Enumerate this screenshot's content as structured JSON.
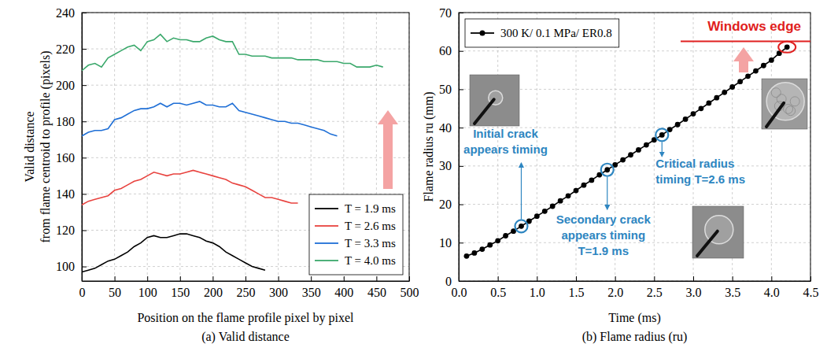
{
  "chart_data": [
    {
      "type": "line",
      "title": "(a) Valid distance",
      "xlabel": "Position on the flame profile pixel by pixel",
      "ylabel": "Valid distance\nfrom flame centroid to profile (pixels)",
      "xlim": [
        0,
        500
      ],
      "xticks": [
        0,
        50,
        100,
        150,
        200,
        250,
        300,
        350,
        400,
        450,
        500
      ],
      "ylim": [
        92,
        240
      ],
      "yticks": [
        100,
        120,
        140,
        160,
        180,
        200,
        220,
        240
      ],
      "grid": true,
      "legend": "lower right",
      "series": [
        {
          "name": "T = 1.9 ms",
          "color": "#000000",
          "line_style": "solid",
          "x": [
            0,
            10,
            20,
            30,
            40,
            50,
            60,
            70,
            80,
            90,
            100,
            110,
            120,
            130,
            140,
            150,
            160,
            170,
            180,
            190,
            200,
            210,
            220,
            230,
            240,
            250,
            260,
            270,
            280
          ],
          "values": [
            97,
            98,
            99,
            101,
            103,
            104,
            106,
            108,
            111,
            113,
            116,
            117,
            116,
            116,
            117,
            118,
            118,
            117,
            116,
            114,
            113,
            111,
            108,
            106,
            104,
            102,
            100,
            99,
            98
          ]
        },
        {
          "name": "T = 2.6 ms",
          "color": "#e8433f",
          "line_style": "solid",
          "x": [
            0,
            10,
            20,
            30,
            40,
            50,
            60,
            70,
            80,
            90,
            100,
            110,
            120,
            130,
            140,
            150,
            160,
            170,
            180,
            190,
            200,
            210,
            220,
            230,
            240,
            250,
            260,
            270,
            280,
            290,
            300,
            310,
            320,
            330
          ],
          "values": [
            134,
            136,
            137,
            138,
            139,
            142,
            143,
            145,
            147,
            148,
            150,
            152,
            151,
            150,
            151,
            151,
            152,
            153,
            152,
            151,
            150,
            149,
            148,
            146,
            145,
            144,
            142,
            140,
            138,
            138,
            137,
            136,
            135,
            135
          ]
        },
        {
          "name": "T = 3.3 ms",
          "color": "#1f6fd6",
          "line_style": "solid",
          "x": [
            0,
            10,
            20,
            30,
            40,
            50,
            60,
            70,
            80,
            90,
            100,
            110,
            120,
            130,
            140,
            150,
            160,
            170,
            180,
            190,
            200,
            210,
            220,
            230,
            240,
            250,
            260,
            270,
            280,
            290,
            300,
            310,
            320,
            330,
            340,
            350,
            360,
            370,
            380,
            390
          ],
          "values": [
            172,
            174,
            175,
            175,
            176,
            181,
            182,
            184,
            186,
            187,
            187,
            188,
            190,
            188,
            190,
            190,
            189,
            190,
            191,
            189,
            189,
            188,
            188,
            190,
            186,
            185,
            184,
            183,
            182,
            181,
            180,
            180,
            179,
            179,
            178,
            177,
            176,
            175,
            173,
            172
          ]
        },
        {
          "name": "T = 4.0 ms",
          "color": "#3aa86b",
          "line_style": "solid",
          "x": [
            0,
            10,
            20,
            30,
            40,
            50,
            60,
            70,
            80,
            90,
            100,
            110,
            120,
            130,
            140,
            150,
            160,
            170,
            180,
            190,
            200,
            210,
            220,
            230,
            240,
            250,
            260,
            270,
            280,
            290,
            300,
            310,
            320,
            330,
            340,
            350,
            360,
            370,
            380,
            390,
            400,
            410,
            420,
            430,
            440,
            450,
            460
          ],
          "values": [
            208,
            211,
            212,
            210,
            215,
            217,
            219,
            221,
            222,
            219,
            224,
            225,
            228,
            224,
            226,
            225,
            225,
            224,
            224,
            226,
            227,
            225,
            224,
            224,
            217,
            217,
            216,
            216,
            216,
            215,
            215,
            215,
            215,
            214,
            214,
            214,
            214,
            213,
            213,
            213,
            212,
            212,
            210,
            210,
            210,
            211,
            210
          ]
        }
      ]
    },
    {
      "type": "line",
      "title": "(b) Flame radius (ru)",
      "xlabel": "Time (ms)",
      "ylabel": "Flame radius ru (mm)",
      "xlim": [
        0,
        4.5
      ],
      "xticks": [
        {
          "value": 0,
          "label": "0.0"
        },
        0.5,
        {
          "value": 1,
          "label": "1.0"
        },
        1.5,
        {
          "value": 2,
          "label": "2.0"
        },
        2.5,
        {
          "value": 3,
          "label": "3.0"
        },
        3.5,
        {
          "value": 4,
          "label": "4.0"
        },
        4.5
      ],
      "ylim": [
        0,
        70
      ],
      "yticks": [
        0,
        10,
        20,
        30,
        40,
        50,
        60,
        70
      ],
      "grid": true,
      "legend": "upper left",
      "x": [
        0.1,
        0.2,
        0.3,
        0.4,
        0.5,
        0.6,
        0.7,
        0.8,
        0.9,
        1.0,
        1.1,
        1.2,
        1.3,
        1.4,
        1.5,
        1.6,
        1.7,
        1.8,
        1.9,
        2.0,
        2.1,
        2.2,
        2.3,
        2.4,
        2.5,
        2.6,
        2.7,
        2.8,
        2.9,
        3.0,
        3.1,
        3.2,
        3.3,
        3.4,
        3.5,
        3.6,
        3.7,
        3.8,
        3.9,
        4.0,
        4.1,
        4.2
      ],
      "series": [
        {
          "name": "300 K/ 0.1 MPa/ ER0.8",
          "color": "#000000",
          "marker": "circle",
          "line_style": "solid",
          "values": [
            6.5,
            7.3,
            8.3,
            9.4,
            10.5,
            11.8,
            13.0,
            14.3,
            15.6,
            16.9,
            18.2,
            19.5,
            20.9,
            22.2,
            23.6,
            25.0,
            26.3,
            27.7,
            29.0,
            30.3,
            31.6,
            32.9,
            34.2,
            35.5,
            36.8,
            38.1,
            39.5,
            40.8,
            42.2,
            43.6,
            45.0,
            46.4,
            47.8,
            49.2,
            50.6,
            52.0,
            53.4,
            54.8,
            56.2,
            57.6,
            59.4,
            61.0
          ]
        }
      ],
      "annotations": [
        {
          "text": "Initial crack\nappears timing",
          "x": 0.8
        },
        {
          "text": "Secondary crack\nappears timing\nT=1.9 ms",
          "x": 1.9
        },
        {
          "text": "Critical radius\ntiming T=2.6 ms",
          "x": 2.6
        }
      ],
      "window_edge": {
        "label": "Windows edge",
        "value": 62.5
      }
    }
  ]
}
